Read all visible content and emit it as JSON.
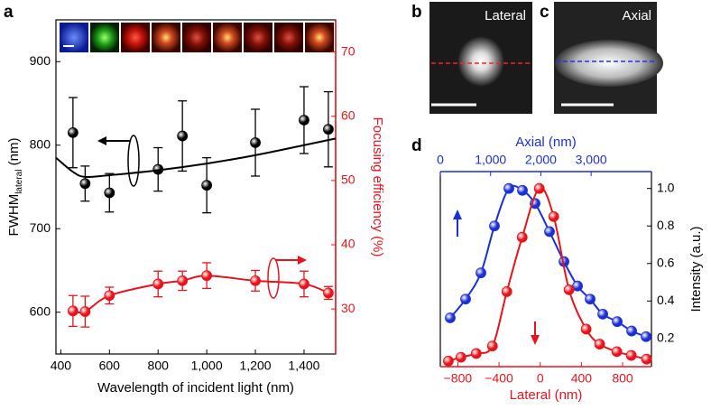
{
  "chart_data": [
    {
      "panel_label": "a",
      "type": "line",
      "x_label": "Wavelength of incident light (nm)",
      "y_label_parts": [
        "FWHM",
        "lateral",
        " (nm)"
      ],
      "y2_label": "Focusing efficiency (%)",
      "xlim": [
        380,
        1530
      ],
      "xticks": [
        400,
        600,
        800,
        {
          "value": 1000,
          "label": "1,000"
        },
        {
          "value": 1200,
          "label": "1,200"
        },
        {
          "value": 1400,
          "label": "1,400"
        }
      ],
      "ylim": [
        550,
        950
      ],
      "yticks": [
        600,
        700,
        800,
        900
      ],
      "y2lim": [
        23,
        75
      ],
      "y2ticks": [
        30,
        40,
        50,
        60,
        70
      ],
      "series": [
        {
          "color": "#000000",
          "style": "points",
          "x": [
            450,
            500,
            600,
            800,
            900,
            1000,
            1200,
            1400,
            1500
          ],
          "values": [
            815,
            754,
            743,
            771,
            811,
            752,
            803,
            830,
            819
          ],
          "errors": [
            42,
            21,
            23,
            26,
            42,
            33,
            40,
            40,
            45
          ]
        },
        {
          "color": "#000000",
          "style": "line",
          "x": [
            380,
            450,
            500,
            600,
            800,
            1000,
            1200,
            1400,
            1530
          ],
          "values": [
            785,
            768,
            762,
            764,
            770,
            778,
            788,
            800,
            808
          ]
        },
        {
          "color": "#e8141b",
          "style": "points-smooth",
          "axis": "y2",
          "x": [
            450,
            500,
            600,
            800,
            900,
            1000,
            1200,
            1400,
            1500
          ],
          "values": [
            29.7,
            29.6,
            32.1,
            33.9,
            34.4,
            35.2,
            34.4,
            33.9,
            32.5
          ],
          "errors": [
            2.4,
            2.4,
            1.3,
            2.0,
            1.5,
            2.0,
            1.6,
            2.0,
            1.0
          ]
        }
      ]
    },
    {
      "panel_label": "d",
      "type": "line",
      "x_label": "Lateral (nm)",
      "x2_label": "Axial (nm)",
      "y_label": "Intensity (a.u.)",
      "xlim": [
        -970,
        1080
      ],
      "xticks": [
        {
          "value": -800,
          "label": "−800"
        },
        {
          "value": -400,
          "label": "−400"
        },
        0,
        400,
        800
      ],
      "x2lim": [
        0,
        4200
      ],
      "x2ticks": [
        0,
        {
          "value": 1000,
          "label": "1,000"
        },
        {
          "value": 2000,
          "label": "2,000"
        },
        {
          "value": 3000,
          "label": "3,000"
        }
      ],
      "ylim": [
        0.05,
        1.09
      ],
      "yticks": [
        0.2,
        0.4,
        0.6,
        0.8,
        {
          "value": 1.0,
          "label": "1.0"
        }
      ],
      "series": [
        {
          "color": "#1a2fd6",
          "style": "points-smooth",
          "axis": "x2",
          "x": [
            197,
            503,
            808,
            1077,
            1364,
            1634,
            1885,
            2172,
            2460,
            2729,
            2980,
            3232,
            3519,
            3806,
            4093
          ],
          "values": [
            0.31,
            0.41,
            0.55,
            0.8,
            1.0,
            0.99,
            0.92,
            0.77,
            0.61,
            0.48,
            0.41,
            0.33,
            0.29,
            0.24,
            0.21
          ]
        },
        {
          "color": "#e8141b",
          "style": "points-smooth",
          "x": [
            -892,
            -770,
            -621,
            -464,
            -324,
            -175,
            -9,
            131,
            280,
            446,
            577,
            744,
            884,
            1033
          ],
          "values": [
            0.08,
            0.1,
            0.12,
            0.16,
            0.45,
            0.74,
            1.0,
            0.85,
            0.46,
            0.25,
            0.17,
            0.13,
            0.11,
            0.09
          ]
        }
      ]
    }
  ],
  "images": [
    {
      "panel_label": "b",
      "label": "Lateral"
    },
    {
      "panel_label": "c",
      "label": "Axial"
    }
  ]
}
